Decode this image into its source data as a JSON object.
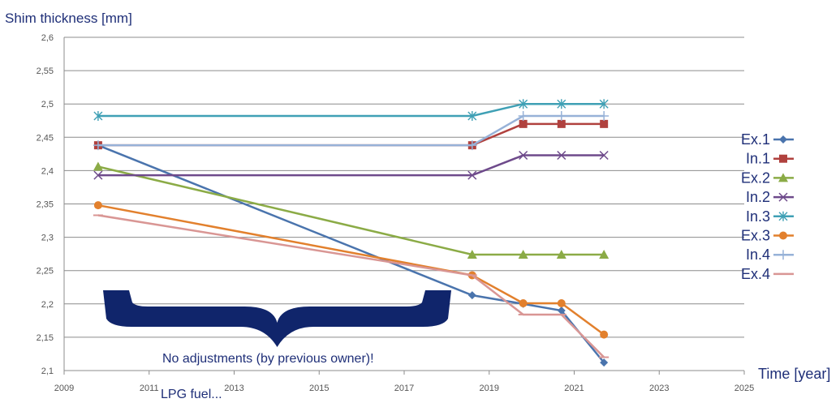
{
  "chart_data": {
    "type": "line",
    "title": "Shim thickness [mm]",
    "xlabel": "Time [year]",
    "ylabel": "Shim thickness [mm]",
    "xlim": [
      2009,
      2025
    ],
    "ylim": [
      2.1,
      2.6
    ],
    "x_ticks": [
      2009,
      2011,
      2013,
      2015,
      2017,
      2019,
      2021,
      2023,
      2025
    ],
    "y_ticks": [
      2.1,
      2.15,
      2.2,
      2.25,
      2.3,
      2.35,
      2.4,
      2.45,
      2.5,
      2.55,
      2.6
    ],
    "y_tick_labels": [
      "2,1",
      "2,15",
      "2,2",
      "2,25",
      "2,3",
      "2,35",
      "2,4",
      "2,45",
      "2,5",
      "2,55",
      "2,6"
    ],
    "grid": true,
    "legend_position": "right",
    "series": [
      {
        "name": "Ex.1",
        "color": "#4a74ad",
        "marker": "diamond",
        "x": [
          2009.8,
          2018.6,
          2019.8,
          2020.7,
          2021.7
        ],
        "y": [
          2.438,
          2.213,
          2.2,
          2.19,
          2.112
        ]
      },
      {
        "name": "In.1",
        "color": "#b0413e",
        "marker": "square",
        "x": [
          2009.8,
          2018.6,
          2019.8,
          2020.7,
          2021.7
        ],
        "y": [
          2.438,
          2.438,
          2.47,
          2.47,
          2.47
        ]
      },
      {
        "name": "Ex.2",
        "color": "#8bab46",
        "marker": "triangle",
        "x": [
          2009.8,
          2018.6,
          2019.8,
          2020.7,
          2021.7
        ],
        "y": [
          2.406,
          2.274,
          2.274,
          2.274,
          2.274
        ]
      },
      {
        "name": "In.2",
        "color": "#6e4a8b",
        "marker": "x",
        "x": [
          2009.8,
          2018.6,
          2019.8,
          2020.7,
          2021.7
        ],
        "y": [
          2.393,
          2.393,
          2.423,
          2.423,
          2.423
        ]
      },
      {
        "name": "In.3",
        "color": "#3fa0b5",
        "marker": "star",
        "x": [
          2009.8,
          2018.6,
          2019.8,
          2020.7,
          2021.7
        ],
        "y": [
          2.482,
          2.482,
          2.5,
          2.5,
          2.5
        ]
      },
      {
        "name": "Ex.3",
        "color": "#e2802d",
        "marker": "circle",
        "x": [
          2009.8,
          2018.6,
          2019.8,
          2020.7,
          2021.7
        ],
        "y": [
          2.348,
          2.243,
          2.201,
          2.201,
          2.154
        ]
      },
      {
        "name": "In.4",
        "color": "#97b2d8",
        "marker": "plus",
        "x": [
          2009.8,
          2018.6,
          2019.8,
          2020.7,
          2021.7
        ],
        "y": [
          2.438,
          2.438,
          2.482,
          2.482,
          2.482
        ]
      },
      {
        "name": "Ex.4",
        "color": "#d99694",
        "marker": "dash",
        "x": [
          2009.8,
          2018.6,
          2019.8,
          2020.7,
          2021.7
        ],
        "y": [
          2.333,
          2.243,
          2.184,
          2.184,
          2.12
        ]
      }
    ],
    "annotations": {
      "brace_text": "No adjustments (by previous owner)!",
      "bottom_text": "LPG fuel...",
      "brace_color": "#10256b"
    }
  }
}
